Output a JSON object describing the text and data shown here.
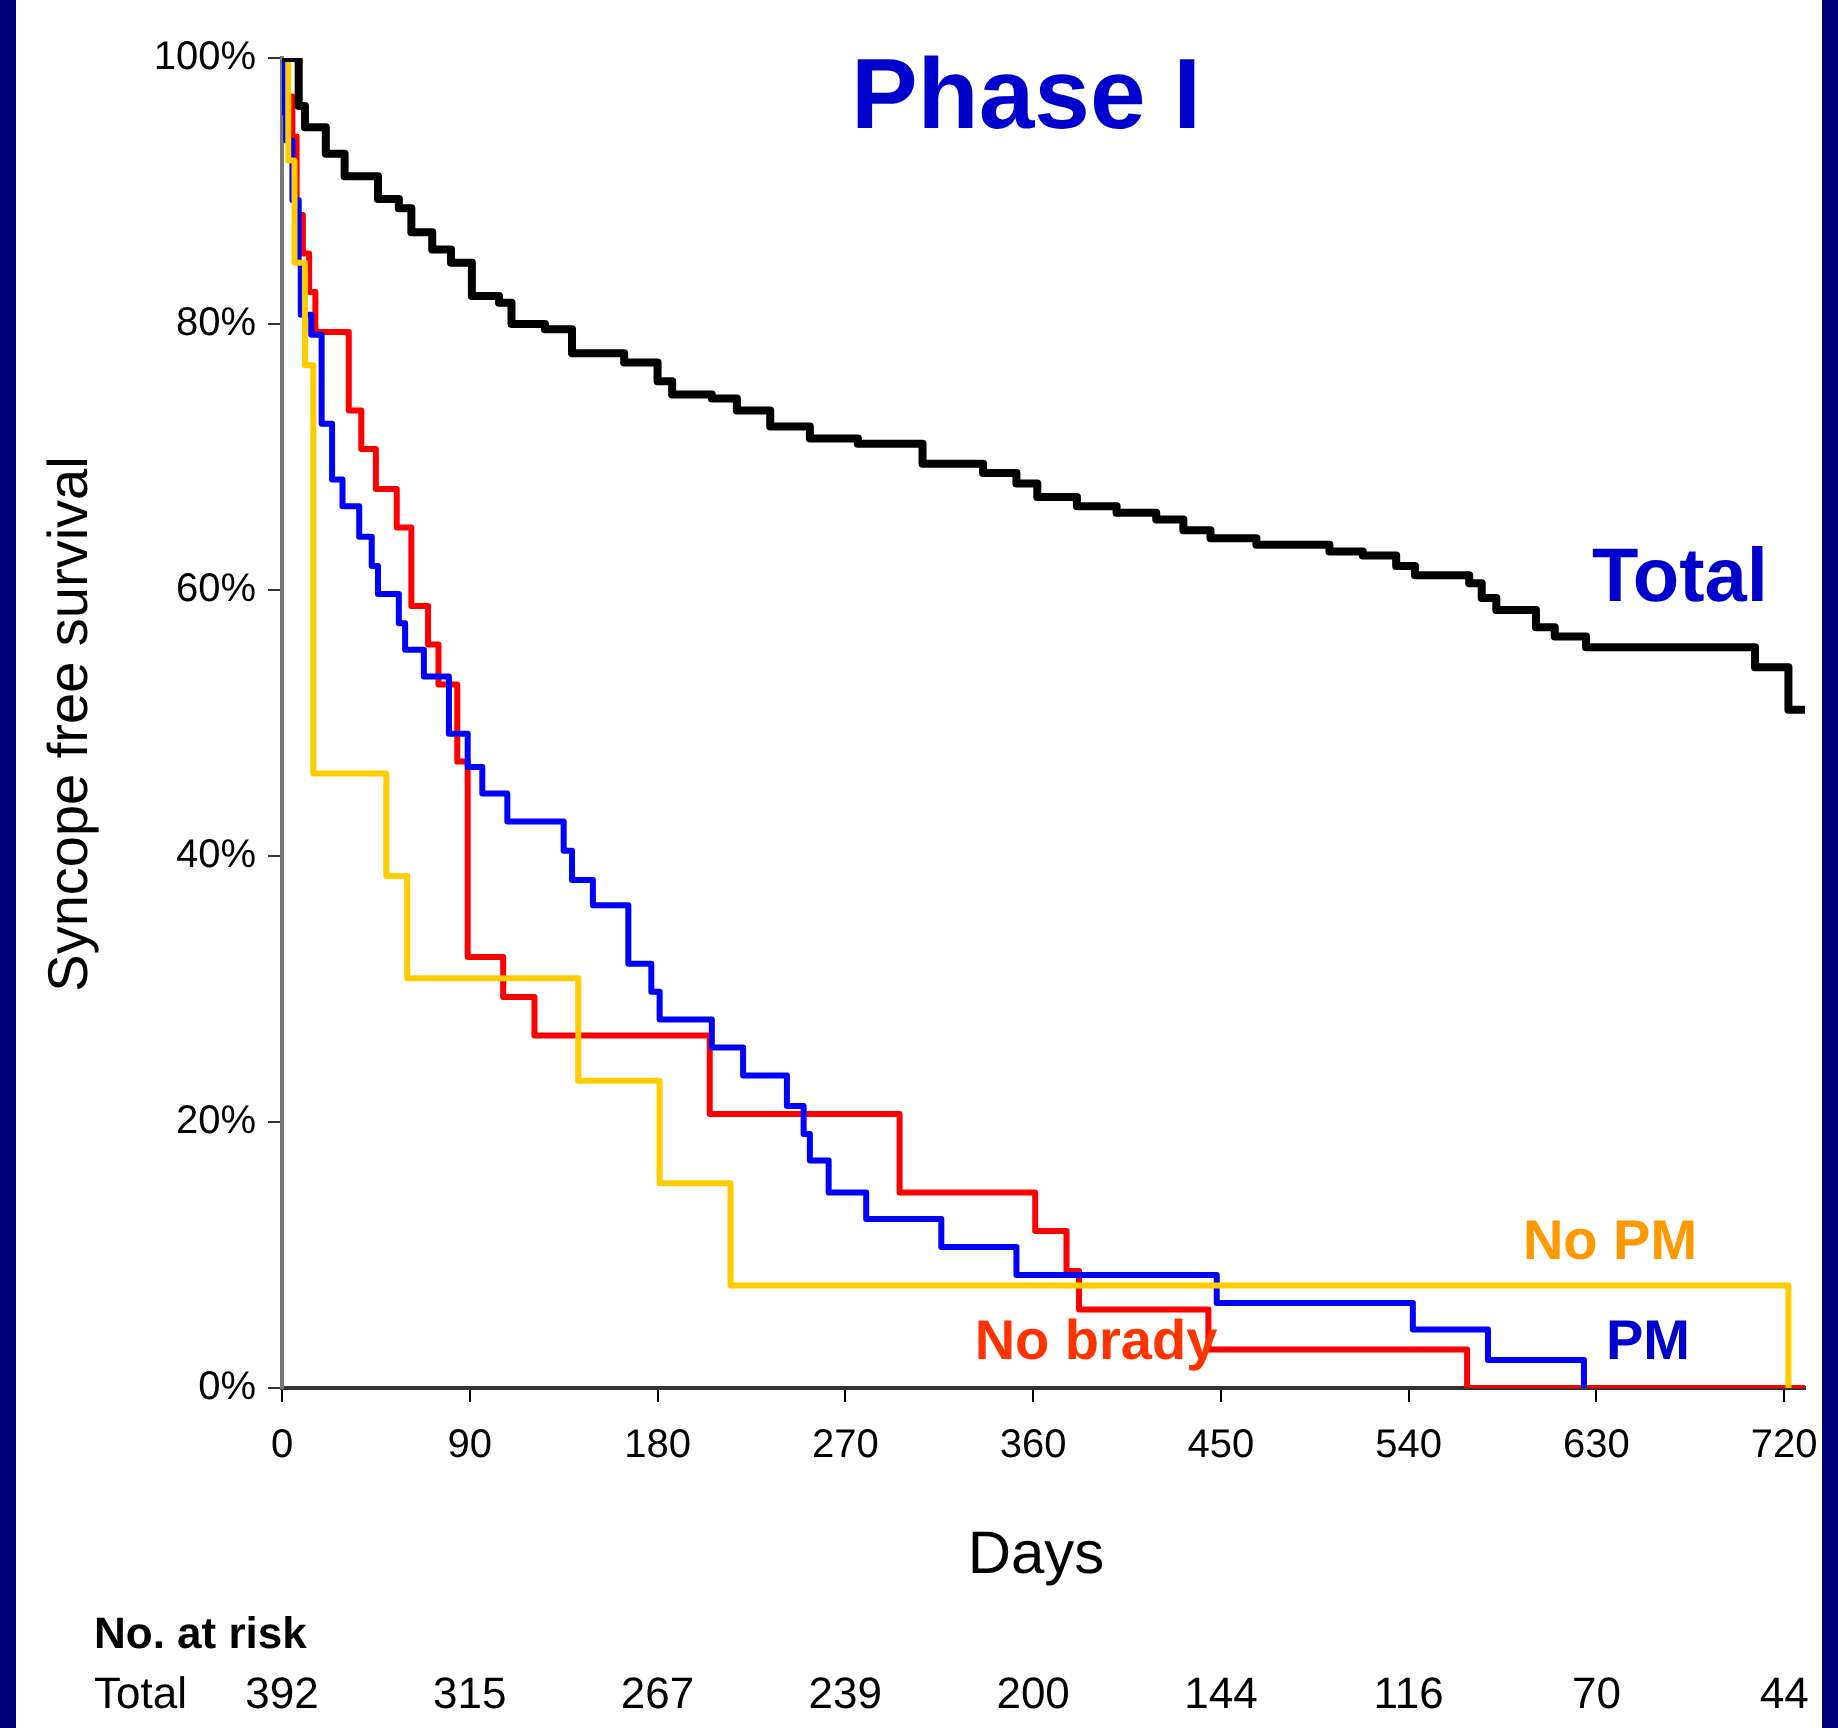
{
  "chart_data": {
    "type": "step",
    "title": "Phase I",
    "xlabel": "Days",
    "ylabel": "Syncope free survival",
    "xlim": [
      0,
      730
    ],
    "xticks": [
      0,
      90,
      180,
      270,
      360,
      450,
      540,
      630,
      720
    ],
    "ylim": [
      0,
      100
    ],
    "yticks": [
      {
        "value": 0,
        "label": "0%"
      },
      {
        "value": 20,
        "label": "20%"
      },
      {
        "value": 40,
        "label": "40%"
      },
      {
        "value": 60,
        "label": "60%"
      },
      {
        "value": 80,
        "label": "80%"
      },
      {
        "value": 100,
        "label": "100%"
      }
    ],
    "grid": false,
    "legend": false,
    "marker": "none",
    "line_style": "solid",
    "series": [
      {
        "name": "Total",
        "color": "#000000",
        "x": [
          0,
          8,
          11,
          21,
          30,
          46,
          56,
          62,
          72,
          81,
          91,
          104,
          110,
          126,
          139,
          164,
          180,
          187,
          206,
          218,
          234,
          253,
          276,
          307,
          336,
          352,
          362,
          381,
          400,
          419,
          432,
          445,
          467,
          502,
          518,
          534,
          543,
          569,
          575,
          582,
          601,
          610,
          625,
          706,
          722,
          730
        ],
        "values": [
          100,
          96.4,
          94.8,
          92.8,
          91.1,
          89.4,
          88.7,
          86.9,
          85.6,
          84.6,
          82.1,
          81.6,
          80.0,
          79.6,
          77.8,
          77.1,
          75.7,
          74.7,
          74.4,
          73.5,
          72.3,
          71.4,
          71.0,
          69.5,
          68.8,
          68.0,
          67.0,
          66.3,
          65.8,
          65.3,
          64.5,
          63.9,
          63.4,
          62.9,
          62.6,
          61.8,
          61.1,
          60.5,
          59.4,
          58.5,
          57.2,
          56.5,
          55.7,
          54.2,
          51.0,
          51.0
        ]
      },
      {
        "name": "No PM",
        "color": "#ffcc00",
        "x": [
          0,
          3,
          6,
          11,
          15,
          50,
          60,
          142,
          181,
          215,
          722
        ],
        "values": [
          100,
          92.3,
          84.6,
          76.9,
          46.2,
          38.5,
          30.8,
          23.1,
          15.4,
          7.7,
          0
        ]
      },
      {
        "name": "PM",
        "color": "#0000ff",
        "x": [
          0,
          1,
          2,
          5,
          8,
          9,
          14,
          19,
          24,
          29,
          37,
          43,
          46,
          56,
          59,
          68,
          80,
          89,
          96,
          108,
          135,
          139,
          149,
          166,
          177,
          181,
          206,
          221,
          242,
          250,
          253,
          262,
          280,
          316,
          352,
          448,
          542,
          578,
          624
        ],
        "values": [
          100,
          95.9,
          93.8,
          89.3,
          84.6,
          80.7,
          79.2,
          72.5,
          68.3,
          66.3,
          64.0,
          61.8,
          59.7,
          57.5,
          55.5,
          53.5,
          49.2,
          46.7,
          44.7,
          42.6,
          40.4,
          38.2,
          36.3,
          31.9,
          29.8,
          27.7,
          25.6,
          23.5,
          21.2,
          19.1,
          17.1,
          14.7,
          12.7,
          10.6,
          8.5,
          6.4,
          4.4,
          2.1,
          0
        ]
      },
      {
        "name": "No brady",
        "color": "#ff0000",
        "x": [
          0,
          2,
          5,
          7,
          10,
          13,
          16,
          32,
          38,
          45,
          55,
          62,
          70,
          75,
          84,
          89,
          106,
          121,
          205,
          296,
          361,
          376,
          382,
          444,
          568,
          730
        ],
        "values": [
          100,
          97.1,
          94.1,
          88.2,
          85.3,
          82.4,
          79.4,
          73.5,
          70.6,
          67.6,
          64.7,
          58.8,
          55.9,
          52.9,
          47.1,
          32.4,
          29.4,
          26.5,
          20.6,
          14.7,
          11.8,
          8.8,
          5.9,
          2.9,
          0,
          0
        ]
      }
    ],
    "annotations": [
      "No. at risk",
      "Total",
      "392",
      "315",
      "267",
      "239",
      "200",
      "144",
      "116",
      "70",
      "44"
    ]
  }
}
